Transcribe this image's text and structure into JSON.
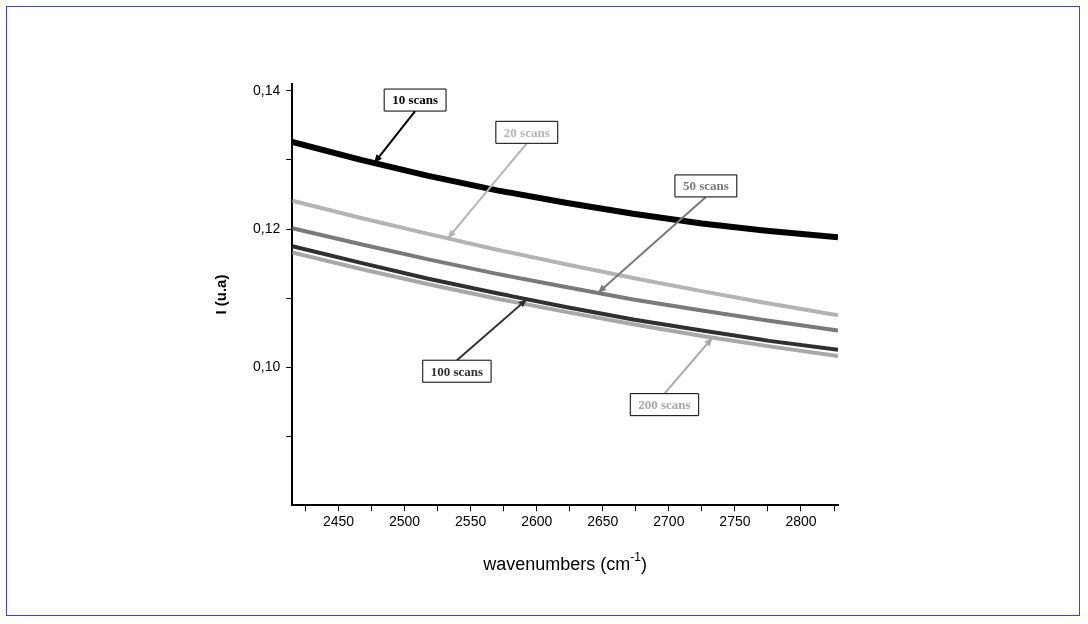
{
  "chart_data": {
    "type": "line",
    "xlabel": "wavenumbers (cm$^{-1}$)",
    "ylabel": "I (u.a)",
    "x": [
      2415,
      2467,
      2518,
      2570,
      2622,
      2673,
      2725,
      2776,
      2828
    ],
    "series": [
      {
        "name": "10 scans",
        "color": "#000000",
        "values": [
          0.1326,
          0.13,
          0.1277,
          0.1256,
          0.1238,
          0.1222,
          0.1208,
          0.1197,
          0.1188
        ]
      },
      {
        "name": "20 scans",
        "color": "#b4b4b4",
        "values": [
          0.1241,
          0.1216,
          0.1193,
          0.117,
          0.1149,
          0.1129,
          0.111,
          0.1092,
          0.1075
        ]
      },
      {
        "name": "50 scans",
        "color": "#7a7a7a",
        "values": [
          0.1201,
          0.1178,
          0.1156,
          0.1135,
          0.1116,
          0.1098,
          0.1082,
          0.1067,
          0.1053
        ]
      },
      {
        "name": "100 scans",
        "color": "#303030",
        "values": [
          0.1175,
          0.1151,
          0.1128,
          0.1107,
          0.1087,
          0.1069,
          0.1053,
          0.1038,
          0.1025
        ]
      },
      {
        "name": "200 scans",
        "color": "#a8a8a8",
        "values": [
          0.1166,
          0.1142,
          0.112,
          0.1099,
          0.108,
          0.1062,
          0.1045,
          0.103,
          0.1016
        ]
      }
    ],
    "xlim": [
      2415,
      2828
    ],
    "xticks": [
      {
        "value": 2425,
        "label": null
      },
      2450,
      {
        "value": 2475,
        "label": null
      },
      2500,
      {
        "value": 2525,
        "label": null
      },
      2550,
      {
        "value": 2575,
        "label": null
      },
      2600,
      {
        "value": 2625,
        "label": null
      },
      2650,
      {
        "value": 2675,
        "label": null
      },
      2700,
      {
        "value": 2725,
        "label": null
      },
      2750,
      {
        "value": 2775,
        "label": null
      },
      2800,
      {
        "value": 2825,
        "label": null
      }
    ],
    "ylim": [
      0.08,
      0.141
    ],
    "yticks": [
      {
        "value": 0.09,
        "label": null
      },
      {
        "value": 0.1,
        "label": "0,10"
      },
      {
        "value": 0.11,
        "label": null
      },
      {
        "value": 0.12,
        "label": "0,12"
      },
      {
        "value": 0.13,
        "label": null
      },
      {
        "value": 0.14,
        "label": "0,14"
      }
    ],
    "grid": false,
    "legend": false,
    "marker": "none",
    "line_style": "solid"
  }
}
